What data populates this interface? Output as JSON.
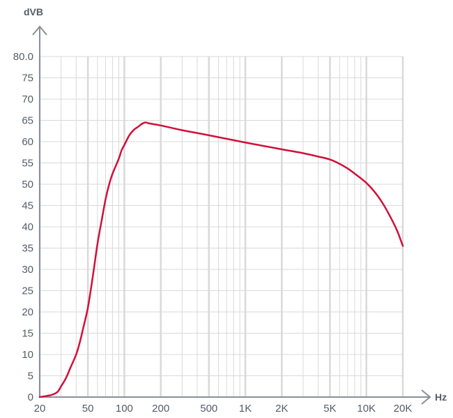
{
  "colors": {
    "background": "#ffffff",
    "grid": "#d9d9d9",
    "axis": "#8a8f96",
    "text": "#555c66",
    "curve": "#d0103a"
  },
  "chart_data": {
    "type": "line",
    "title": "",
    "xlabel": "Hz",
    "ylabel": "dVB",
    "x_scale": "log",
    "xlim": [
      20,
      20000
    ],
    "ylim": [
      0,
      80
    ],
    "grid": true,
    "legend": "none",
    "x_ticks": [
      {
        "value": 20,
        "label": "20"
      },
      {
        "value": 50,
        "label": "50"
      },
      {
        "value": 100,
        "label": "100"
      },
      {
        "value": 200,
        "label": "200"
      },
      {
        "value": 500,
        "label": "500"
      },
      {
        "value": 1000,
        "label": "1K"
      },
      {
        "value": 2000,
        "label": "2K"
      },
      {
        "value": 5000,
        "label": "5K"
      },
      {
        "value": 10000,
        "label": "10K"
      },
      {
        "value": 20000,
        "label": "20K"
      }
    ],
    "y_ticks": [
      {
        "value": 0,
        "label": "0"
      },
      {
        "value": 5,
        "label": "5"
      },
      {
        "value": 10,
        "label": "10"
      },
      {
        "value": 15,
        "label": "15"
      },
      {
        "value": 20,
        "label": "20"
      },
      {
        "value": 25,
        "label": "25"
      },
      {
        "value": 30,
        "label": "30"
      },
      {
        "value": 35,
        "label": "35"
      },
      {
        "value": 40,
        "label": "40"
      },
      {
        "value": 45,
        "label": "45"
      },
      {
        "value": 50,
        "label": "50"
      },
      {
        "value": 55,
        "label": "55"
      },
      {
        "value": 60,
        "label": "60"
      },
      {
        "value": 65,
        "label": "65"
      },
      {
        "value": 70,
        "label": "70"
      },
      {
        "value": 75,
        "label": "75"
      },
      {
        "value": 80,
        "label": "80.0"
      }
    ],
    "minor_gridlines_x": [
      30,
      40,
      60,
      70,
      80,
      90,
      300,
      400,
      600,
      700,
      800,
      900,
      3000,
      4000,
      6000,
      7000,
      8000,
      9000
    ],
    "series": [
      {
        "x": [
          20,
          25,
          28,
          30,
          33,
          36,
          40,
          43,
          46,
          50,
          55,
          60,
          65,
          70,
          75,
          80,
          90,
          95,
          100,
          110,
          120,
          130,
          140,
          150,
          160,
          200,
          300,
          500,
          1000,
          2000,
          3000,
          4000,
          5000,
          6000,
          7000,
          8000,
          10000,
          12000,
          14000,
          16000,
          18000,
          20000
        ],
        "y": [
          0.0,
          0.5,
          1.2,
          2.5,
          4.5,
          7.0,
          10.0,
          13.0,
          16.5,
          21.0,
          28.5,
          36.0,
          41.5,
          46.5,
          50.0,
          52.5,
          56.0,
          58.0,
          59.2,
          61.5,
          62.8,
          63.5,
          64.2,
          64.5,
          64.3,
          63.8,
          62.7,
          61.5,
          59.8,
          58.2,
          57.3,
          56.5,
          55.8,
          54.8,
          53.7,
          52.5,
          50.3,
          47.8,
          45.0,
          42.0,
          39.0,
          35.5
        ]
      }
    ]
  }
}
